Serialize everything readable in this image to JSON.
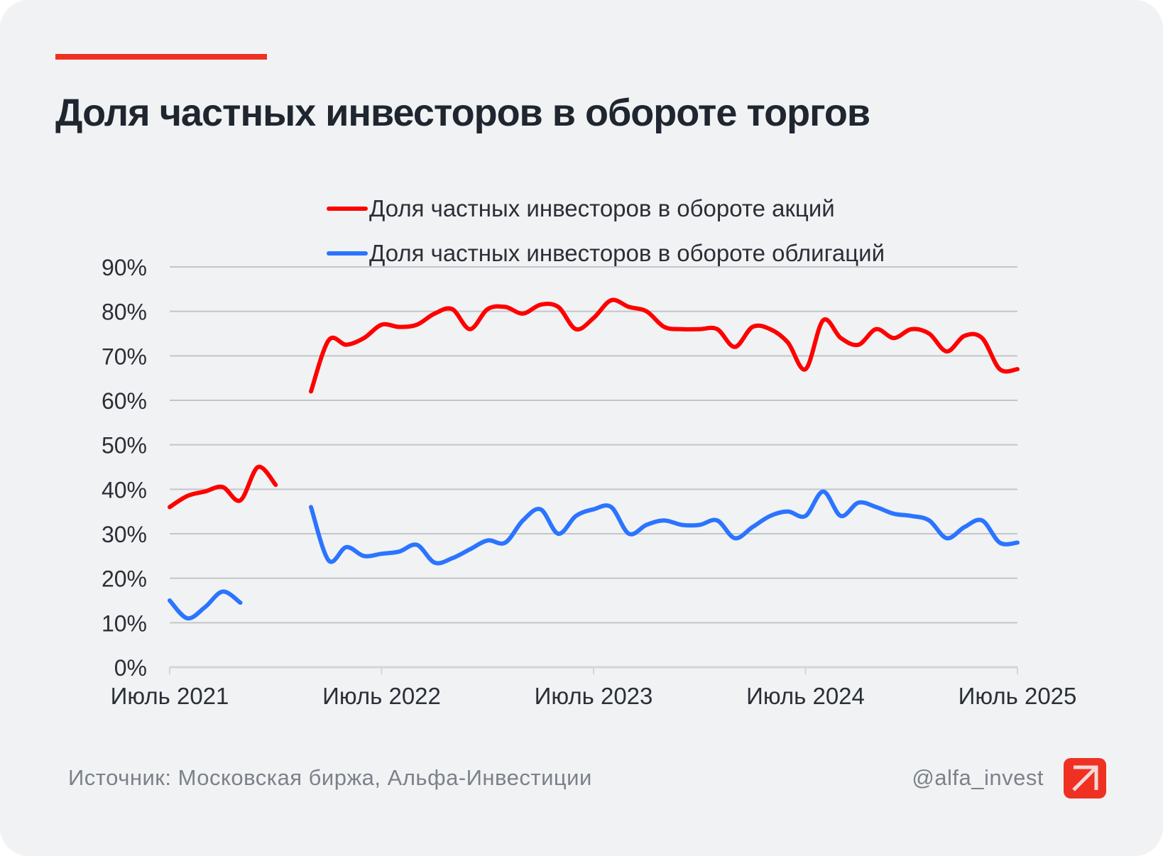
{
  "header": {
    "title": "Доля частных инвесторов в обороте торгов"
  },
  "legend": [
    {
      "label": "Доля частных инвесторов в обороте акций",
      "color": "#ff0000"
    },
    {
      "label": "Доля частных инвесторов в обороте облигаций",
      "color": "#2b74ff"
    }
  ],
  "footer": {
    "source": "Источник: Московская биржа, Альфа-Инвестиции",
    "handle": "@alfa_invest",
    "logo_icon": "alfa-arrow-logo-icon"
  },
  "colors": {
    "accent": "#ef3124",
    "stocks": "#ff0000",
    "bonds": "#2b74ff",
    "grid": "#c4c5c8",
    "background": "#f1f2f4"
  },
  "chart_data": {
    "type": "line",
    "title": "Доля частных инвесторов в обороте торгов",
    "xlabel": "",
    "ylabel": "",
    "x_unit": "months since July 2021",
    "x_range": [
      0,
      48
    ],
    "ylim": [
      0,
      90
    ],
    "grid": true,
    "legend_position": "top-center",
    "x_ticks": [
      {
        "x": 0,
        "label": "Июль 2021"
      },
      {
        "x": 12,
        "label": "Июль 2022"
      },
      {
        "x": 24,
        "label": "Июль 2023"
      },
      {
        "x": 36,
        "label": "Июль 2024"
      },
      {
        "x": 48,
        "label": "Июль 2025"
      }
    ],
    "y_ticks": [
      {
        "y": 0,
        "label": "0%"
      },
      {
        "y": 10,
        "label": "10%"
      },
      {
        "y": 20,
        "label": "20%"
      },
      {
        "y": 30,
        "label": "30%"
      },
      {
        "y": 40,
        "label": "40%"
      },
      {
        "y": 50,
        "label": "50%"
      },
      {
        "y": 60,
        "label": "60%"
      },
      {
        "y": 70,
        "label": "70%"
      },
      {
        "y": 80,
        "label": "80%"
      },
      {
        "y": 90,
        "label": "90%"
      }
    ],
    "series": [
      {
        "name": "Доля частных инвесторов в обороте акций",
        "color": "#ff0000",
        "segments": [
          {
            "x": [
              0,
              1,
              2,
              3,
              4,
              5,
              6
            ],
            "y": [
              36,
              38.5,
              39.5,
              40.5,
              37.5,
              45,
              41
            ]
          },
          {
            "x": [
              8,
              9,
              10,
              11,
              12,
              13,
              14,
              15,
              16,
              17,
              18,
              19,
              20,
              21,
              22,
              23,
              24,
              25,
              26,
              27,
              28,
              29,
              30,
              31,
              32,
              33,
              34,
              35,
              36,
              37,
              38,
              39,
              40,
              41,
              42,
              43,
              44,
              45,
              46,
              47,
              48
            ],
            "y": [
              62,
              73.5,
              72.5,
              74,
              77,
              76.5,
              77,
              79.5,
              80.5,
              76,
              80.5,
              81,
              79.5,
              81.5,
              81,
              76,
              78.5,
              82.5,
              81,
              80,
              76.5,
              76,
              76,
              76,
              72,
              76.5,
              76,
              73,
              67,
              78,
              74,
              72.5,
              76,
              74,
              76,
              75,
              71,
              74.5,
              74,
              67,
              67
            ]
          }
        ]
      },
      {
        "name": "Доля частных инвесторов в обороте облигаций",
        "color": "#2b74ff",
        "segments": [
          {
            "x": [
              0,
              1,
              2,
              3,
              4
            ],
            "y": [
              15,
              11,
              13.5,
              17,
              14.5
            ]
          },
          {
            "x": [
              8,
              9,
              10,
              11,
              12,
              13,
              14,
              15,
              16,
              17,
              18,
              19,
              20,
              21,
              22,
              23,
              24,
              25,
              26,
              27,
              28,
              29,
              30,
              31,
              32,
              33,
              34,
              35,
              36,
              37,
              38,
              39,
              40,
              41,
              42,
              43,
              44,
              45,
              46,
              47,
              48
            ],
            "y": [
              36,
              24,
              27,
              25,
              25.5,
              26,
              27.5,
              23.5,
              24.5,
              26.5,
              28.5,
              28,
              33,
              35.5,
              30,
              34,
              35.5,
              36,
              30,
              32,
              33,
              32,
              32,
              33,
              29,
              31.5,
              34,
              35,
              34,
              39.5,
              34,
              37,
              36,
              34.5,
              34,
              33,
              29,
              31.5,
              33,
              28,
              28
            ]
          }
        ]
      }
    ]
  }
}
